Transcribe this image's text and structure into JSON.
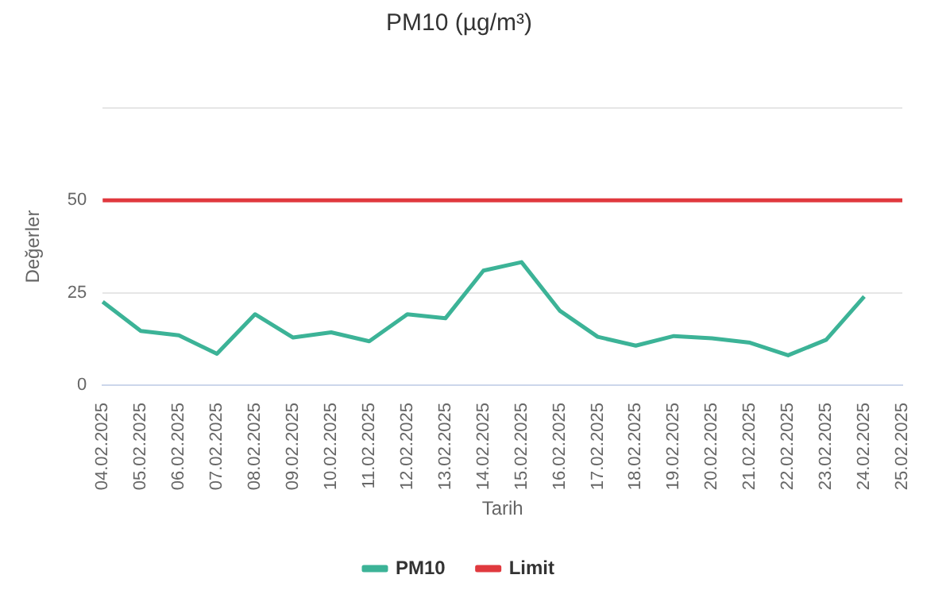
{
  "chart_data": {
    "type": "line",
    "title": "PM10 (µg/m³)",
    "xlabel": "Tarih",
    "ylabel": "Değerler",
    "categories": [
      "04.02.2025",
      "05.02.2025",
      "06.02.2025",
      "07.02.2025",
      "08.02.2025",
      "09.02.2025",
      "10.02.2025",
      "11.02.2025",
      "12.02.2025",
      "13.02.2025",
      "14.02.2025",
      "15.02.2025",
      "16.02.2025",
      "17.02.2025",
      "18.02.2025",
      "19.02.2025",
      "20.02.2025",
      "21.02.2025",
      "22.02.2025",
      "23.02.2025",
      "24.02.2025",
      "25.02.2025"
    ],
    "series": [
      {
        "name": "PM10",
        "color": "#3cb397",
        "values": [
          22.6,
          14.7,
          13.5,
          8.5,
          19.2,
          12.9,
          14.3,
          11.9,
          19.2,
          18.1,
          31,
          33.3,
          20.2,
          13.1,
          10.7,
          13.3,
          12.7,
          11.5,
          8.1,
          12.3,
          24,
          null
        ]
      },
      {
        "name": "Limit",
        "color": "#e0393e",
        "values": [
          50,
          50,
          50,
          50,
          50,
          50,
          50,
          50,
          50,
          50,
          50,
          50,
          50,
          50,
          50,
          50,
          50,
          50,
          50,
          50,
          50,
          50
        ]
      }
    ],
    "ylim": [
      0,
      75
    ],
    "yticks": [
      0,
      25,
      50,
      {
        "value": 75,
        "label": null
      }
    ],
    "grid": "y",
    "legend": "bottom",
    "marker": "none",
    "line_style": "solid"
  }
}
